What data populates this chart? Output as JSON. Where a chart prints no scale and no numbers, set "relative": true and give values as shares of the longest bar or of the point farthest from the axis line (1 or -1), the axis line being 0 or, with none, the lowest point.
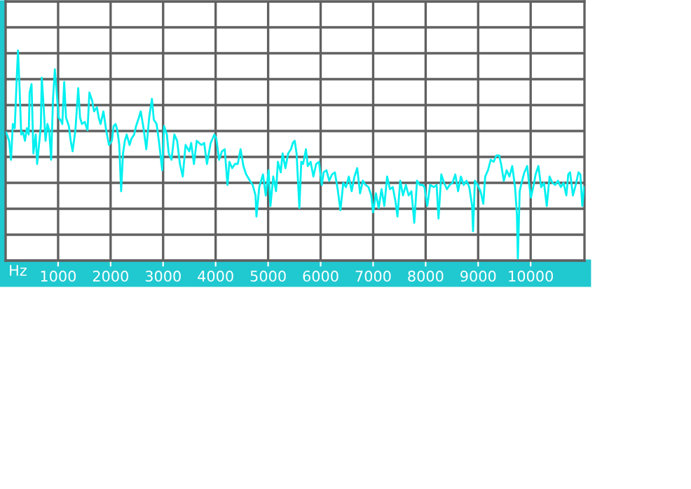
{
  "chart_data": {
    "type": "line",
    "relative": true,
    "xlabel": "Hz",
    "xlim": [
      0,
      11025
    ],
    "xticks": [
      1000,
      2000,
      3000,
      4000,
      5000,
      6000,
      7000,
      8000,
      9000,
      10000
    ],
    "grid": true,
    "marker": "none",
    "line_style": "solid",
    "series": [
      {
        "color": "#00f0f0",
        "x": [
          10,
          67,
          103,
          138,
          174,
          209,
          236,
          263,
          298,
          334,
          369,
          405,
          440,
          458,
          494,
          529,
          574,
          600,
          636,
          671,
          689,
          725,
          760,
          796,
          831,
          867,
          903,
          938,
          974,
          1009,
          1045,
          1080,
          1116,
          1151,
          1205,
          1240,
          1276,
          1329,
          1383,
          1418,
          1454,
          1507,
          1560,
          1596,
          1649,
          1685,
          1738,
          1774,
          1809,
          1863,
          1916,
          1969,
          2023,
          2058,
          2094,
          2129,
          2165,
          2200,
          2236,
          2271,
          2307,
          2360,
          2396,
          2449,
          2485,
          2538,
          2574,
          2627,
          2680,
          2734,
          2787,
          2823,
          2876,
          2929,
          2983,
          3018,
          3071,
          3107,
          3160,
          3214,
          3267,
          3320,
          3374,
          3427,
          3498,
          3534,
          3587,
          3640,
          3729,
          3782,
          3835,
          3906,
          3977,
          4013,
          4066,
          4120,
          4173,
          4226,
          4262,
          4315,
          4369,
          4422,
          4475,
          4529,
          4582,
          4653,
          4706,
          4760,
          4777,
          4831,
          4902,
          4955,
          5009,
          5044,
          5097,
          5151,
          5186,
          5240,
          5275,
          5329,
          5382,
          5435,
          5471,
          5506,
          5542,
          5595,
          5631,
          5666,
          5720,
          5755,
          5809,
          5862,
          5915,
          5969,
          6022,
          6057,
          6111,
          6164,
          6217,
          6271,
          6324,
          6377,
          6431,
          6484,
          6537,
          6591,
          6644,
          6697,
          6751,
          6804,
          6857,
          6911,
          6964,
          7000,
          7053,
          7106,
          7160,
          7213,
          7266,
          7320,
          7374,
          7427,
          7463,
          7516,
          7569,
          7623,
          7676,
          7729,
          7783,
          7836,
          7889,
          7943,
          7978,
          8031,
          8085,
          8156,
          8209,
          8245,
          8298,
          8351,
          8405,
          8458,
          8511,
          8565,
          8618,
          8671,
          8725,
          8778,
          8831,
          8885,
          8903,
          8938,
          8991,
          9045,
          9098,
          9134,
          9187,
          9240,
          9294,
          9347,
          9400,
          9436,
          9489,
          9543,
          9596,
          9649,
          9703,
          9738,
          9756,
          9791,
          9827,
          9880,
          9934,
          9969,
          10005,
          10058,
          10094,
          10147,
          10200,
          10254,
          10307,
          10360,
          10414,
          10467,
          10520,
          10574,
          10627,
          10680,
          10716,
          10751,
          10805,
          10858,
          10911,
          10947,
          10983,
          11018
        ],
        "values": [
          0.61,
          0.57,
          0.48,
          0.65,
          0.63,
          0.85,
          1.0,
          0.84,
          0.6,
          0.61,
          0.57,
          0.63,
          0.6,
          0.8,
          0.84,
          0.51,
          0.6,
          0.46,
          0.55,
          0.64,
          0.87,
          0.73,
          0.57,
          0.65,
          0.62,
          0.48,
          0.77,
          0.91,
          0.8,
          0.68,
          0.67,
          0.65,
          0.85,
          0.68,
          0.64,
          0.57,
          0.52,
          0.62,
          0.82,
          0.68,
          0.65,
          0.66,
          0.62,
          0.8,
          0.76,
          0.71,
          0.73,
          0.68,
          0.65,
          0.71,
          0.62,
          0.55,
          0.57,
          0.64,
          0.65,
          0.62,
          0.55,
          0.33,
          0.51,
          0.57,
          0.6,
          0.55,
          0.58,
          0.6,
          0.64,
          0.68,
          0.71,
          0.63,
          0.53,
          0.68,
          0.77,
          0.67,
          0.65,
          0.55,
          0.43,
          0.64,
          0.6,
          0.51,
          0.48,
          0.6,
          0.57,
          0.46,
          0.4,
          0.55,
          0.52,
          0.56,
          0.46,
          0.57,
          0.55,
          0.56,
          0.46,
          0.56,
          0.6,
          0.58,
          0.48,
          0.52,
          0.53,
          0.36,
          0.47,
          0.44,
          0.46,
          0.46,
          0.53,
          0.45,
          0.41,
          0.38,
          0.36,
          0.31,
          0.21,
          0.35,
          0.41,
          0.31,
          0.43,
          0.26,
          0.4,
          0.33,
          0.47,
          0.42,
          0.51,
          0.44,
          0.51,
          0.53,
          0.56,
          0.57,
          0.51,
          0.25,
          0.47,
          0.46,
          0.53,
          0.45,
          0.47,
          0.4,
          0.46,
          0.47,
          0.36,
          0.42,
          0.43,
          0.38,
          0.41,
          0.42,
          0.34,
          0.24,
          0.37,
          0.35,
          0.4,
          0.33,
          0.4,
          0.44,
          0.32,
          0.38,
          0.36,
          0.35,
          0.31,
          0.23,
          0.32,
          0.25,
          0.34,
          0.26,
          0.4,
          0.34,
          0.35,
          0.28,
          0.21,
          0.38,
          0.31,
          0.36,
          0.31,
          0.33,
          0.18,
          0.38,
          0.36,
          0.36,
          0.35,
          0.26,
          0.36,
          0.35,
          0.36,
          0.2,
          0.41,
          0.37,
          0.34,
          0.36,
          0.37,
          0.41,
          0.33,
          0.4,
          0.36,
          0.38,
          0.35,
          0.26,
          0.14,
          0.38,
          0.36,
          0.33,
          0.27,
          0.4,
          0.43,
          0.48,
          0.47,
          0.5,
          0.5,
          0.46,
          0.38,
          0.43,
          0.4,
          0.45,
          0.35,
          0.22,
          0.01,
          0.33,
          0.37,
          0.42,
          0.45,
          0.37,
          0.3,
          0.36,
          0.41,
          0.45,
          0.35,
          0.37,
          0.26,
          0.4,
          0.37,
          0.36,
          0.38,
          0.35,
          0.37,
          0.31,
          0.41,
          0.42,
          0.31,
          0.36,
          0.42,
          0.41,
          0.26,
          0.35
        ]
      }
    ]
  }
}
